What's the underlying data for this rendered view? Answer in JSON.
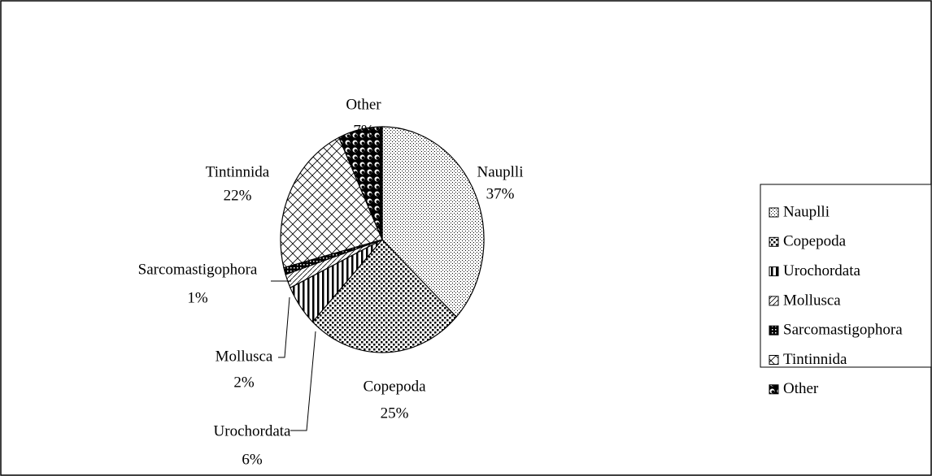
{
  "chart_data": {
    "type": "pie",
    "categories": [
      "Nauplli",
      "Copepoda",
      "Urochordata",
      "Mollusca",
      "Sarcomastigophora",
      "Tintinnida",
      "Other"
    ],
    "values": [
      37,
      25,
      6,
      2,
      1,
      22,
      7
    ],
    "value_labels": [
      "37%",
      "25%",
      "6%",
      "2%",
      "1%",
      "22%",
      "7%"
    ],
    "legend": "right"
  }
}
